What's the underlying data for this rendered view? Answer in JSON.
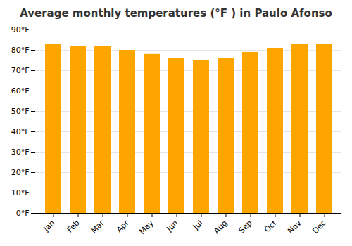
{
  "chart_data": {
    "type": "bar",
    "title": "Average monthly temperatures (°F ) in Paulo Afonso",
    "categories": [
      "Jan",
      "Feb",
      "Mar",
      "Apr",
      "May",
      "Jun",
      "Jul",
      "Aug",
      "Sep",
      "Oct",
      "Nov",
      "Dec"
    ],
    "values": [
      83,
      82,
      82,
      80,
      78,
      76,
      75,
      76,
      79,
      81,
      83,
      83
    ],
    "color": "#FFA500",
    "ylim": [
      0,
      90
    ],
    "yticks": [
      {
        "value": 0,
        "label": "0°F"
      },
      {
        "value": 10,
        "label": "10°F"
      },
      {
        "value": 20,
        "label": "20°F"
      },
      {
        "value": 30,
        "label": "30°F"
      },
      {
        "value": 40,
        "label": "40°F"
      },
      {
        "value": 50,
        "label": "50°F"
      },
      {
        "value": 60,
        "label": "60°F"
      },
      {
        "value": 70,
        "label": "70°F"
      },
      {
        "value": 80,
        "label": "80°F"
      },
      {
        "value": 90,
        "label": "90°F"
      }
    ],
    "grid": true
  }
}
